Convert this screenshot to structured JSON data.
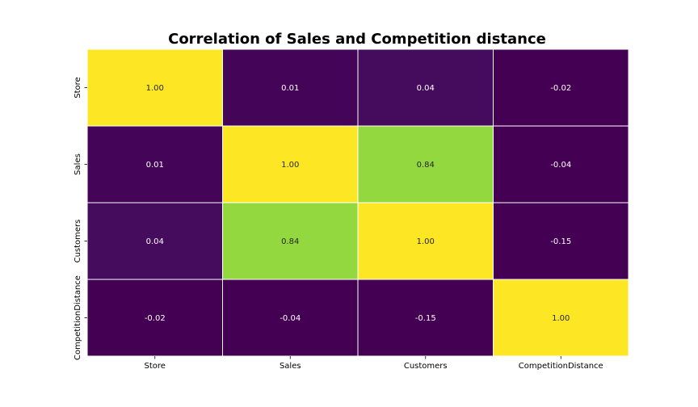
{
  "chart_data": {
    "type": "heatmap",
    "title": "Correlation of Sales and Competition distance",
    "x_categories": [
      "Store",
      "Sales",
      "Customers",
      "CompetitionDistance"
    ],
    "y_categories": [
      "Store",
      "Sales",
      "Customers",
      "CompetitionDistance"
    ],
    "values": [
      [
        1.0,
        0.01,
        0.04,
        -0.02
      ],
      [
        0.01,
        1.0,
        0.84,
        -0.04
      ],
      [
        0.04,
        0.84,
        1.0,
        -0.15
      ],
      [
        -0.02,
        -0.04,
        -0.15,
        1.0
      ]
    ],
    "value_format": "2 decimals",
    "colormap": "viridis",
    "vmin": 0.0,
    "vmax": 1.0,
    "colorbar": false,
    "cell_border_color": "#ffffff",
    "annotated": true,
    "label_color_dark_bg": "#ffffff",
    "label_color_light_bg": "#262626"
  }
}
